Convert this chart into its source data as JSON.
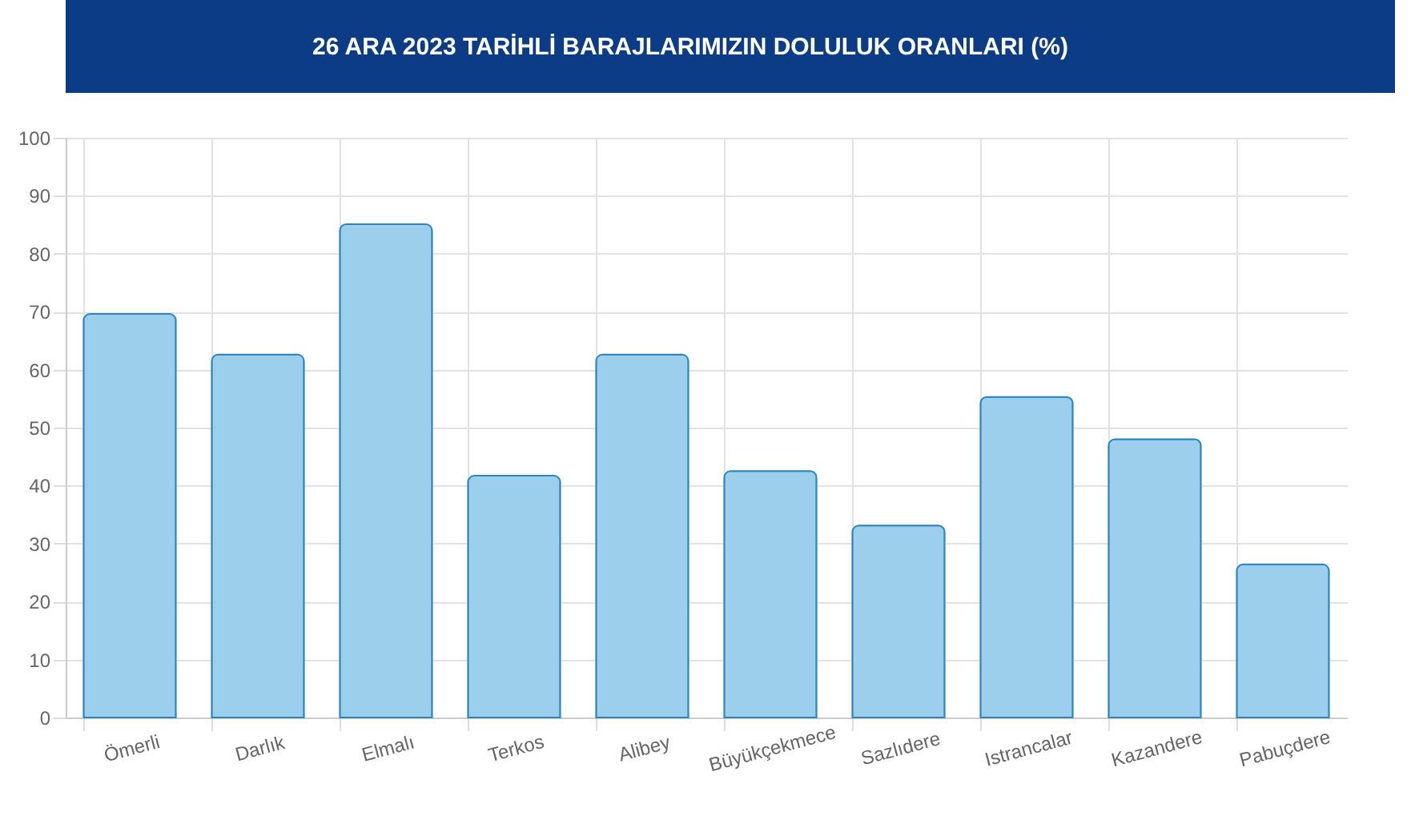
{
  "chart_data": {
    "type": "bar",
    "title": "26 ARA 2023 TARİHLİ BARAJLARIMIZIN DOLULUK ORANLARI (%)",
    "categories": [
      "Ömerli",
      "Darlık",
      "Elmalı",
      "Terkos",
      "Alibey",
      "Büyükçekmece",
      "Sazlıdere",
      "Istrancalar",
      "Kazandere",
      "Pabuçdere"
    ],
    "values": [
      69.6,
      62.6,
      85.1,
      41.7,
      62.6,
      42.5,
      33.1,
      55.3,
      48.0,
      26.4
    ],
    "color": "#9bcfeb",
    "ylim": [
      0,
      100
    ],
    "yticks": [
      0,
      10,
      20,
      30,
      40,
      50,
      60,
      70,
      80,
      90,
      100
    ],
    "grid": true
  }
}
